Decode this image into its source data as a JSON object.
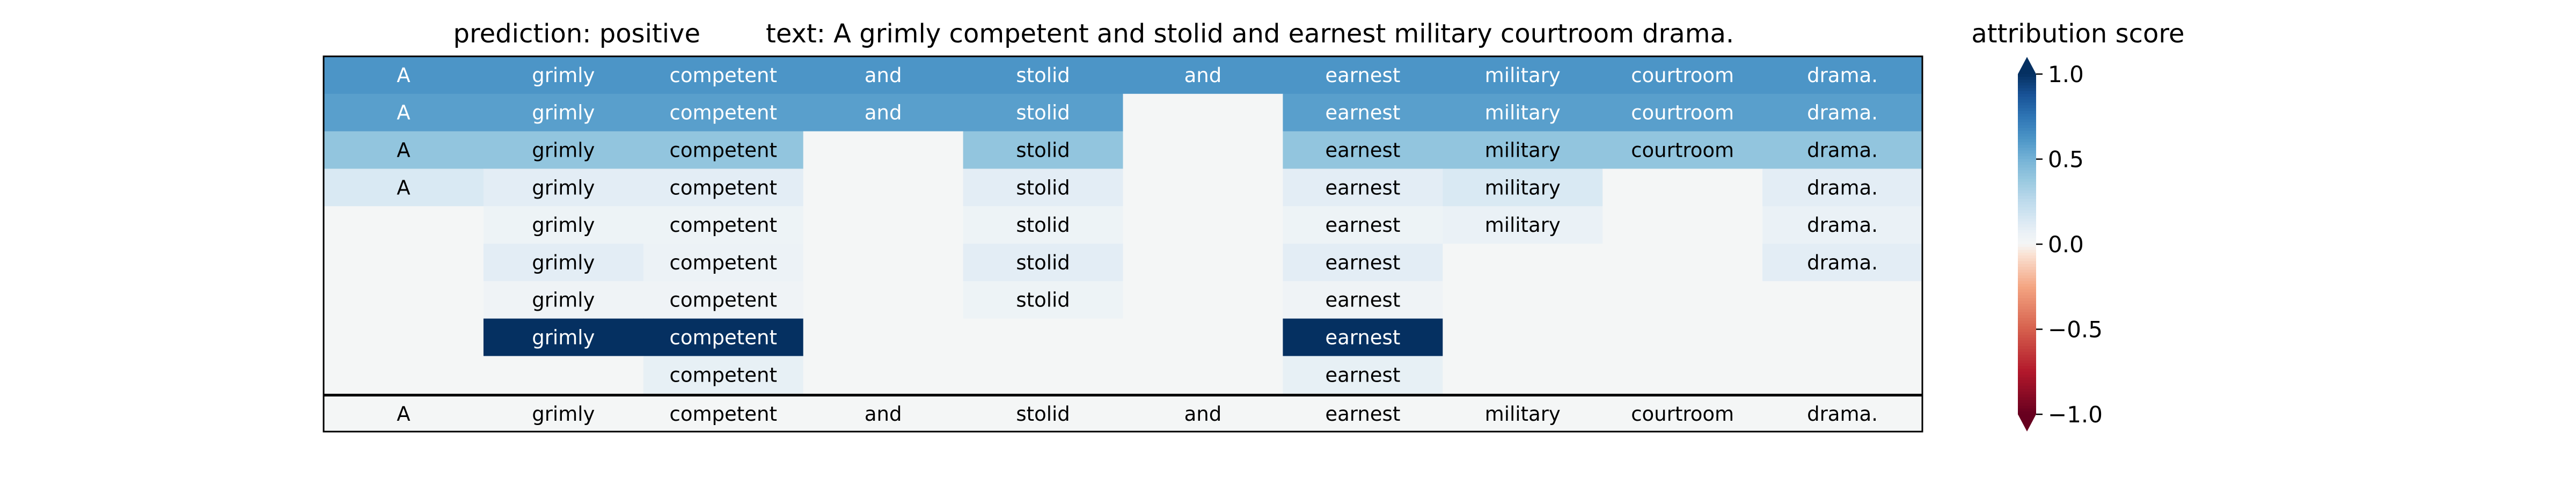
{
  "header": {
    "prediction": "prediction:  positive",
    "text": "text:  A grimly competent and stolid and earnest military courtroom drama.",
    "colorbar_label": "attribution score"
  },
  "chart_data": {
    "type": "heatmap",
    "title": "prediction:  positive     text:  A grimly competent and stolid and earnest military courtroom drama.",
    "tokens": [
      "A",
      "grimly",
      "competent",
      "and",
      "stolid",
      "and",
      "earnest",
      "military",
      "courtroom",
      "drama."
    ],
    "rows": [
      {
        "tokens": [
          "A",
          "grimly",
          "competent",
          "and",
          "stolid",
          "and",
          "earnest",
          "military",
          "courtroom",
          "drama."
        ],
        "values": [
          0.62,
          0.62,
          0.62,
          0.62,
          0.62,
          0.62,
          0.62,
          0.62,
          0.62,
          0.62
        ]
      },
      {
        "tokens": [
          "A",
          "grimly",
          "competent",
          "and",
          "stolid",
          "",
          "earnest",
          "military",
          "courtroom",
          "drama."
        ],
        "values": [
          0.58,
          0.58,
          0.58,
          0.58,
          0.58,
          0.0,
          0.58,
          0.58,
          0.58,
          0.58
        ]
      },
      {
        "tokens": [
          "A",
          "grimly",
          "competent",
          "",
          "stolid",
          "",
          "earnest",
          "military",
          "courtroom",
          "drama."
        ],
        "values": [
          0.4,
          0.4,
          0.4,
          0.0,
          0.4,
          0.0,
          0.4,
          0.4,
          0.4,
          0.4
        ]
      },
      {
        "tokens": [
          "A",
          "grimly",
          "competent",
          "",
          "stolid",
          "",
          "earnest",
          "military",
          "",
          "drama."
        ],
        "values": [
          0.14,
          0.1,
          0.1,
          0.0,
          0.1,
          0.0,
          0.1,
          0.14,
          0.0,
          0.1
        ]
      },
      {
        "tokens": [
          "",
          "grimly",
          "competent",
          "",
          "stolid",
          "",
          "earnest",
          "military",
          "",
          "drama."
        ],
        "values": [
          0.0,
          0.05,
          0.05,
          0.0,
          0.05,
          0.0,
          0.05,
          0.07,
          0.0,
          0.07
        ]
      },
      {
        "tokens": [
          "",
          "grimly",
          "competent",
          "",
          "stolid",
          "",
          "earnest",
          "",
          "",
          "drama."
        ],
        "values": [
          0.0,
          0.1,
          0.06,
          0.0,
          0.1,
          0.0,
          0.1,
          0.0,
          0.0,
          0.1
        ]
      },
      {
        "tokens": [
          "",
          "grimly",
          "competent",
          "",
          "stolid",
          "",
          "earnest",
          "",
          "",
          ""
        ],
        "values": [
          0.0,
          0.04,
          0.04,
          0.0,
          0.05,
          0.0,
          0.04,
          0.0,
          0.0,
          0.0
        ]
      },
      {
        "tokens": [
          "",
          "grimly",
          "competent",
          "",
          "",
          "",
          "earnest",
          "",
          "",
          ""
        ],
        "values": [
          0.0,
          1.0,
          1.0,
          0.0,
          0.0,
          0.0,
          1.0,
          0.0,
          0.0,
          0.0
        ]
      },
      {
        "tokens": [
          "",
          "",
          "competent",
          "",
          "",
          "",
          "earnest",
          "",
          "",
          ""
        ],
        "values": [
          0.0,
          0.0,
          0.08,
          0.0,
          0.0,
          0.0,
          0.08,
          0.0,
          0.0,
          0.0
        ]
      }
    ],
    "original_row": [
      "A",
      "grimly",
      "competent",
      "and",
      "stolid",
      "and",
      "earnest",
      "military",
      "courtroom",
      "drama."
    ],
    "colorbar": {
      "label": "attribution score",
      "range": [
        -1.0,
        1.0
      ],
      "ticks": [
        1.0,
        0.5,
        0.0,
        -0.5,
        -1.0
      ],
      "tick_labels": [
        "1.0",
        "0.5",
        "0.0",
        "−0.5",
        "−1.0"
      ],
      "colormap": "RdBu",
      "extend": "both"
    },
    "colors": {
      "strong_positive": "#053061",
      "neutral": "#f4f6f6",
      "strong_negative": "#67001f"
    }
  }
}
